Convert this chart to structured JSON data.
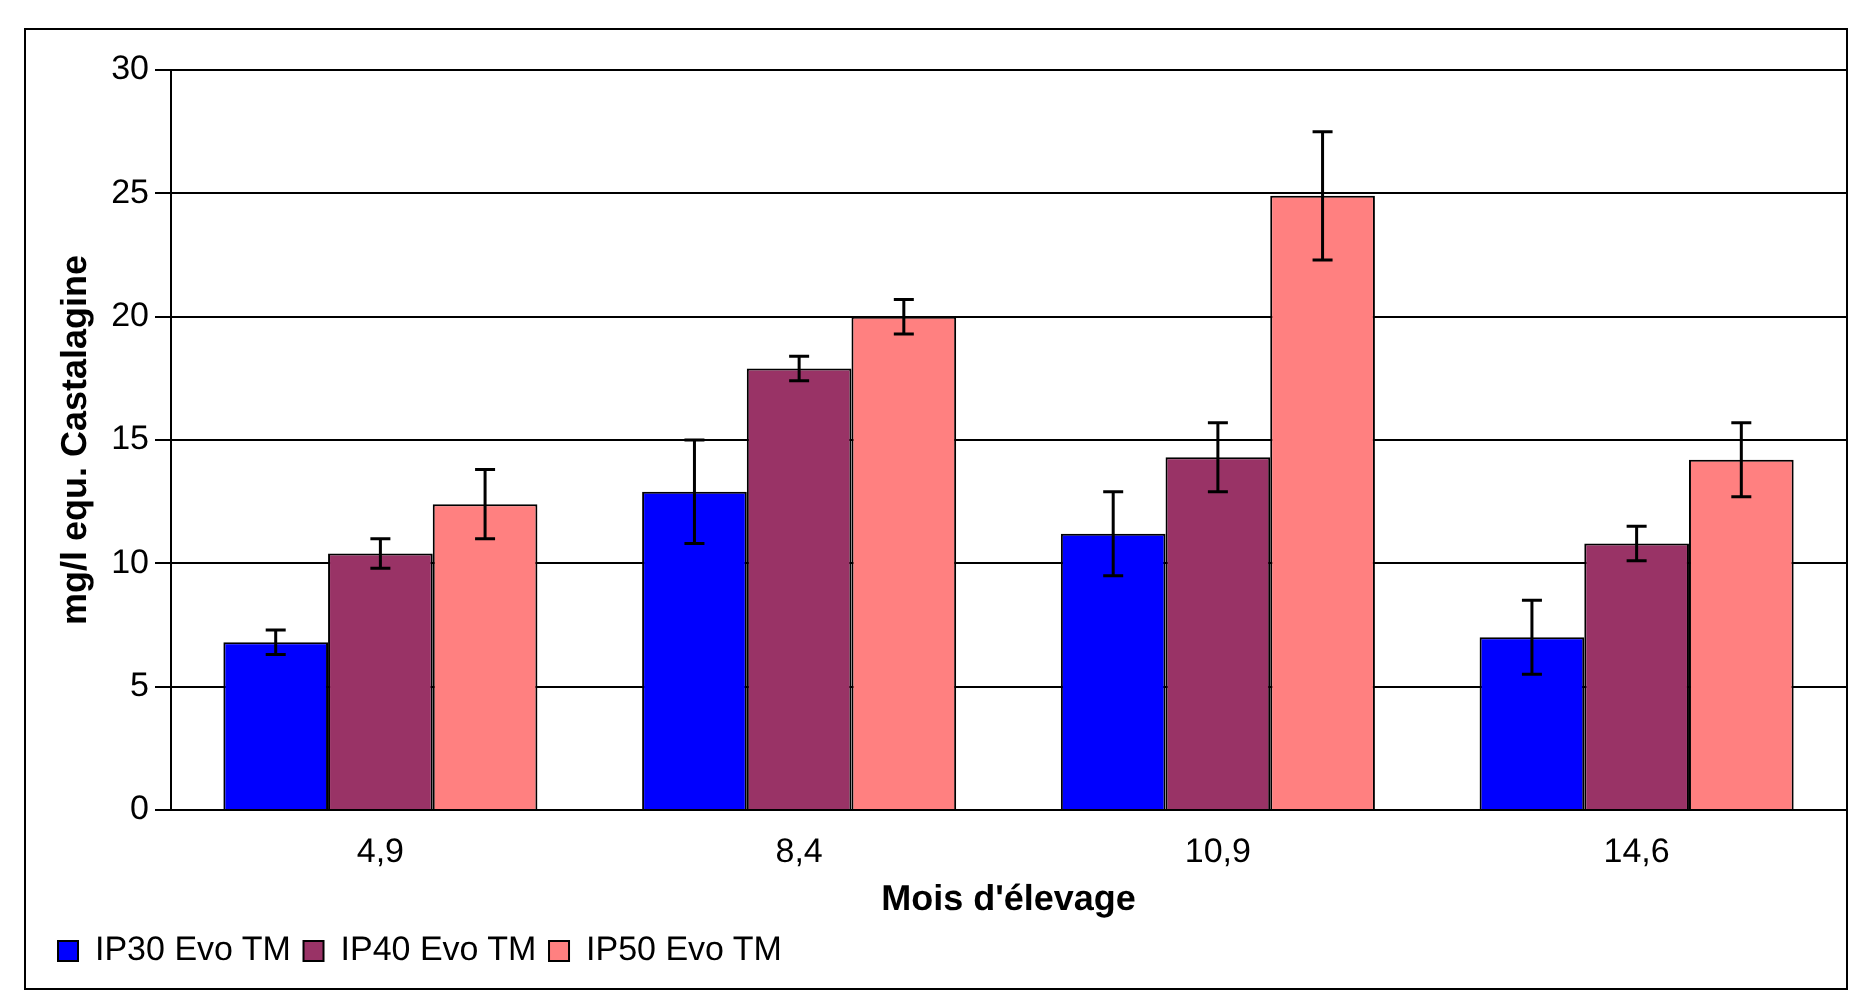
{
  "chart_data": {
    "type": "bar",
    "xlabel": "Mois d'élevage",
    "ylabel": "mg/l equ. Castalagine",
    "categories": [
      "4,9",
      "8,4",
      "10,9",
      "14,6"
    ],
    "series": [
      {
        "name": "IP30 Evo TM",
        "color": "#0000ff",
        "values": [
          6.8,
          12.9,
          11.2,
          7.0
        ],
        "errors": [
          0.5,
          2.1,
          1.7,
          1.5
        ]
      },
      {
        "name": "IP40 Evo TM",
        "color": "#993366",
        "values": [
          10.4,
          17.9,
          14.3,
          10.8
        ],
        "errors": [
          0.6,
          0.5,
          1.4,
          0.7
        ]
      },
      {
        "name": "IP50 Evo TM",
        "color": "#ff8080",
        "values": [
          12.4,
          20.0,
          24.9,
          14.2
        ],
        "errors": [
          1.4,
          0.7,
          2.6,
          1.5
        ]
      }
    ],
    "ylim": [
      0,
      30
    ],
    "yticks": [
      0,
      5,
      10,
      15,
      20,
      25,
      30
    ],
    "grid": "y",
    "legend": "bottom left"
  }
}
